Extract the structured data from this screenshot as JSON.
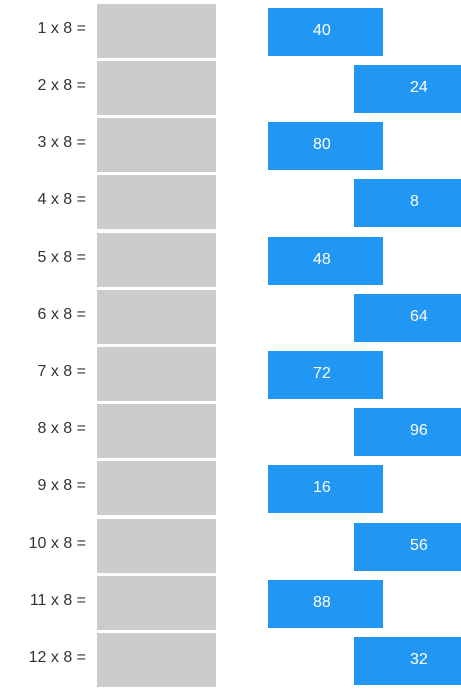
{
  "multiplier": 8,
  "tile_color": "#2196f3",
  "drop_zone_color": "#cccccc",
  "rows": [
    {
      "equation": "1 x 8 =",
      "tile": "40"
    },
    {
      "equation": "2 x 8 =",
      "tile": "24"
    },
    {
      "equation": "3 x 8 =",
      "tile": "80"
    },
    {
      "equation": "4 x 8 =",
      "tile": "8"
    },
    {
      "equation": "5 x 8 =",
      "tile": "48"
    },
    {
      "equation": "6 x 8 =",
      "tile": "64"
    },
    {
      "equation": "7 x 8 =",
      "tile": "72"
    },
    {
      "equation": "8 x 8 =",
      "tile": "96"
    },
    {
      "equation": "9 x 8 =",
      "tile": "16"
    },
    {
      "equation": "10 x 8 =",
      "tile": "56"
    },
    {
      "equation": "11 x 8 =",
      "tile": "88"
    },
    {
      "equation": "12 x 8 =",
      "tile": "32"
    }
  ]
}
